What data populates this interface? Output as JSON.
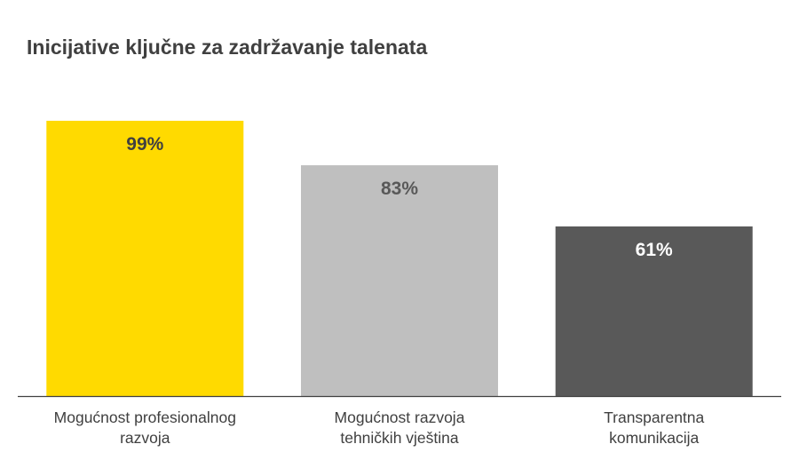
{
  "chart_data": {
    "type": "bar",
    "title": "Inicijative ključne za zadržavanje talenata",
    "xlabel": "",
    "ylabel": "",
    "ylim": [
      0,
      100
    ],
    "grid": false,
    "legend": "none",
    "categories": [
      [
        "Mogućnost profesionalnog",
        "razvoja"
      ],
      [
        "Mogućnost razvoja",
        "tehničkih vještina"
      ],
      [
        "Transparentna",
        "komunikacija"
      ]
    ],
    "values": [
      99,
      83,
      61
    ],
    "value_labels": [
      "99%",
      "83%",
      "61%"
    ],
    "bar_colors": [
      "#FFDA00",
      "#BFBFBF",
      "#595959"
    ],
    "label_colors": [
      "#404040",
      "#595959",
      "#FFFFFF"
    ],
    "axis_color": "#404040"
  }
}
